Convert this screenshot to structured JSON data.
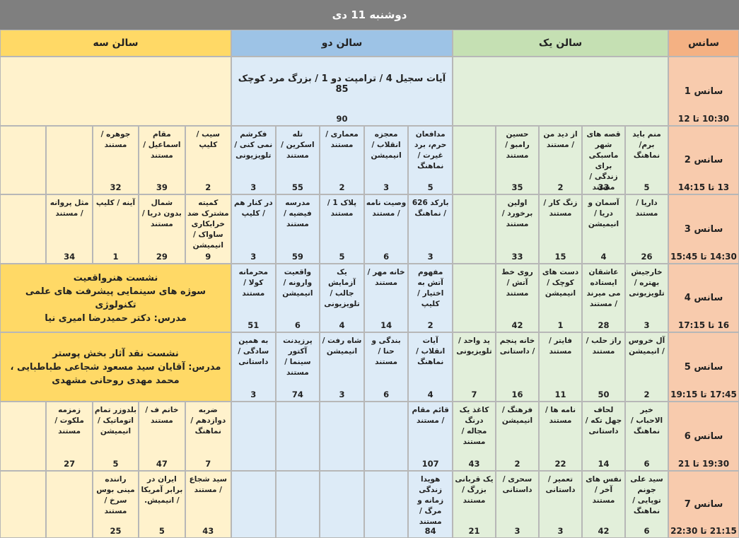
{
  "title": "دوشنبه 11 دی",
  "header": {
    "session": "سانس",
    "halls": [
      "سالن یک",
      "سالن دو",
      "سالن سه"
    ]
  },
  "rows": [
    {
      "session": "سانس 1",
      "time": "10:30 تا 12",
      "halls": [
        null,
        {
          "lines": [
            "آیات سجیل 4 / ترامپت دو 1 / بزرگ مرد کوچک 85"
          ],
          "count": 90
        },
        null
      ]
    },
    {
      "session": "سانس 2",
      "time": "13 تا 14:15",
      "halls": [
        [
          {
            "title": "منم باید برم/ نماهنگ",
            "count": 5
          },
          {
            "title": "قصه های شهر ماسبکی برای زندگی / مستند",
            "count": 33
          },
          {
            "title": "از دید من / مستند",
            "count": 2
          },
          {
            "title": "حسین رامبو / مستند",
            "count": 35
          },
          null
        ],
        [
          {
            "title": "مدافعان حرم، برد غیرت / نماهنگ",
            "count": 5
          },
          {
            "title": "معجزه انقلاب / انیمیشن",
            "count": 3
          },
          {
            "title": "معماری / مستند",
            "count": 2
          },
          {
            "title": "تله اسکرین / مستند",
            "count": 55
          },
          {
            "title": "فکرشم نمی کنی / تلویزیونی",
            "count": 3
          }
        ],
        [
          {
            "title": "سیب / کلیپ",
            "count": 2
          },
          {
            "title": "مقام اسماعیل / مستند",
            "count": 39
          },
          {
            "title": "جوهره / مستند",
            "count": 32
          },
          null,
          null
        ]
      ]
    },
    {
      "session": "سانس 3",
      "time": "14:30 تا 15:45",
      "halls": [
        [
          {
            "title": "داریا / مستند",
            "count": 26
          },
          {
            "title": "آسمان و دریا / انیمیشن",
            "count": 4
          },
          {
            "title": "زنگ کار / مستند",
            "count": 15
          },
          {
            "title": "اولین برخورد / مستند",
            "count": 33
          },
          null
        ],
        [
          {
            "title": "بارکد 626 / نماهنگ",
            "count": 3
          },
          {
            "title": "وصیت نامه / مستند",
            "count": 6
          },
          {
            "title": "پلاک 1 / مستند",
            "count": 5
          },
          {
            "title": "مدرسه فیضیه / مستند",
            "count": 59
          },
          {
            "title": "در کنار هم / کلیپ",
            "count": 3
          }
        ],
        [
          {
            "title": "کمیته مشترک ضد خرابکاری ساواک / انیمیشن",
            "count": 9
          },
          {
            "title": "شمال بدون دریا / مستند",
            "count": 29
          },
          {
            "title": "آینه / کلیپ",
            "count": 1
          },
          {
            "title": "مثل پروانه / مستند",
            "count": 34
          },
          null
        ]
      ]
    },
    {
      "session": "سانس 4",
      "time": "16 تا 17:15",
      "halls": [
        [
          {
            "title": "خارجیش بهتره / تلویزیونی",
            "count": 3
          },
          {
            "title": "عاشقان ایستاده می میرند / مستند",
            "count": 28
          },
          {
            "title": "دست های کوچک / انیمیشن",
            "count": 1
          },
          {
            "title": "روی خط آتش / مستند",
            "count": 42
          },
          null
        ],
        [
          {
            "title": "مفهوم آتش به اختیار / کلیپ",
            "count": 2
          },
          {
            "title": "خانه مهر / مستند",
            "count": 14
          },
          {
            "title": "یک آزمایش جالب / تلویزیونی",
            "count": 4
          },
          {
            "title": "واقعیت وارونه / انیمیشن",
            "count": 6
          },
          {
            "title": "محرمانه کولا / مستند",
            "count": 51
          }
        ],
        {
          "lines": [
            "نشست هنرواقعیت",
            "سوژه های سینمایی پیشرفت های علمی تکنولوژی",
            "مدرس: دکتر حمیدرضا امیری نیا"
          ]
        }
      ]
    },
    {
      "session": "سانس 5",
      "time": "17:45 تا 19:15",
      "halls": [
        [
          {
            "title": "آل خروس / انیمیشن",
            "count": 2
          },
          {
            "title": "راز حلب / مستند",
            "count": 50
          },
          {
            "title": "فایتر / مستند",
            "count": 11
          },
          {
            "title": "خانه پنجم / داستانی",
            "count": 16
          },
          {
            "title": "ید واحد / تلویزیونی",
            "count": 7
          }
        ],
        [
          {
            "title": "آیات انقلاب / نماهنگ",
            "count": 4
          },
          {
            "title": "بندگی و حنا / مستند",
            "count": 6
          },
          {
            "title": "شاه رفت /انیمیشن",
            "count": 3
          },
          {
            "title": "پرزیدنت آکتور سینما / مستند",
            "count": 74
          },
          {
            "title": "به همین سادگی / داستانی",
            "count": 3
          }
        ],
        {
          "lines": [
            "نشست نقد آثار بخش پوستر",
            "مدرس: آقایان سید مسعود شجاعی طباطبایی ، محمد مهدی روحانی مشهدی"
          ]
        }
      ]
    },
    {
      "session": "سانس 6",
      "time": "19:30 تا 21",
      "halls": [
        [
          {
            "title": "خیر الاحباب / نماهنگ",
            "count": 6
          },
          {
            "title": "لحاف جهل تکه / داستانی",
            "count": 14
          },
          {
            "title": "نامه ها / مستند",
            "count": 22
          },
          {
            "title": "فرهنگ / انیمیشن",
            "count": 2
          },
          {
            "title": "کاغذ یک درنگ مجاله / مستند",
            "count": 43
          }
        ],
        [
          {
            "title": "قائم مقام / مستند",
            "count": 107
          },
          null,
          null,
          null,
          null
        ],
        [
          {
            "title": "ضربه دوازدهم / نماهنگ",
            "count": 7
          },
          {
            "title": "خانم ف / مستند",
            "count": 47
          },
          {
            "title": "بلدوزر تمام اتوماتیک / انیمیشن",
            "count": 5
          },
          {
            "title": "زمزمه ملکوت / مستند",
            "count": 27
          },
          null
        ]
      ]
    },
    {
      "session": "سانس 7",
      "time": "21:15 تا 22:30",
      "halls": [
        [
          {
            "title": "سید علی جونم توپایی / نماهنگ",
            "count": 6
          },
          {
            "title": "نفس های آخر / مستند",
            "count": 42
          },
          {
            "title": "تعمیر / داستانی",
            "count": 3
          },
          {
            "title": "سحری / داستانی",
            "count": 3
          },
          {
            "title": "یک قربانی بزرگ / مستند",
            "count": 21
          }
        ],
        [
          {
            "title": "هویدا زندگی زمانه و مرگ / مستند",
            "count": 84
          },
          null,
          null,
          null,
          null
        ],
        [
          {
            "title": "سید شجاع / مستند",
            "count": 43
          },
          {
            "title": "ایران در برابر آمریکا / انیمیش.",
            "count": 5
          },
          {
            "title": "راننده مینی بوس سرخ / مستند",
            "count": 25
          },
          null,
          null
        ]
      ]
    }
  ]
}
